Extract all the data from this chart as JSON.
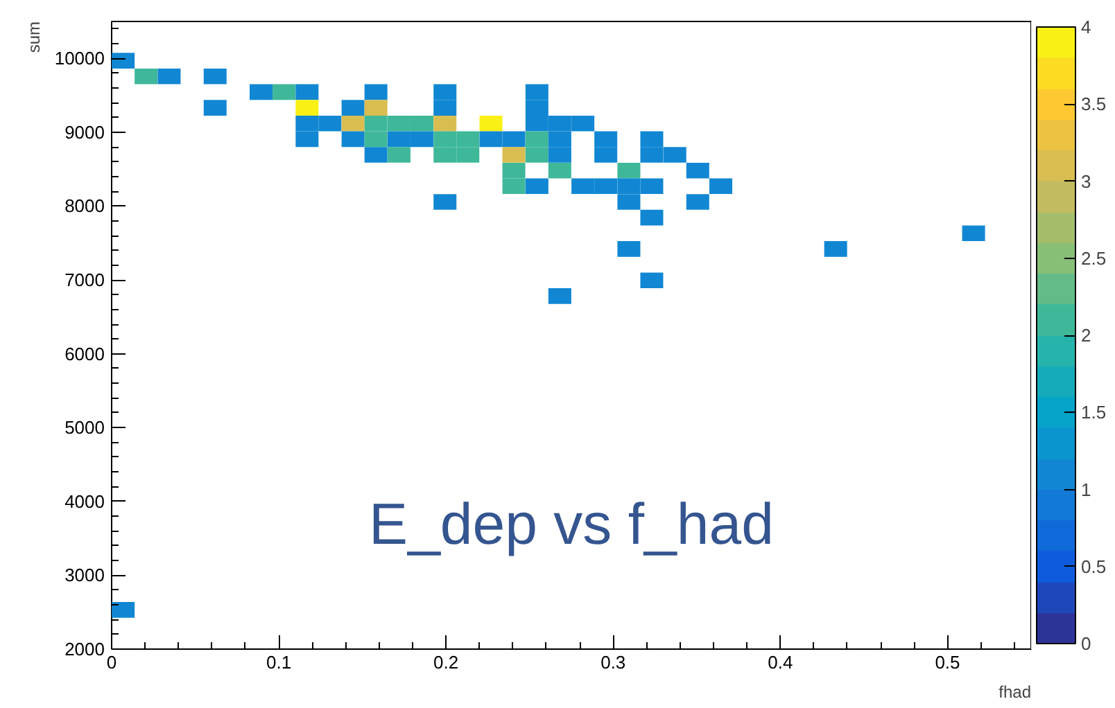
{
  "chart_data": {
    "type": "scatter",
    "marker": "square",
    "xlabel": "fhad",
    "ylabel": "sum",
    "annotations": [
      "E_dep vs f_had"
    ],
    "xlim": [
      0,
      0.55
    ],
    "ylim": [
      2000,
      10500
    ],
    "xticks": [
      0,
      0.1,
      0.2,
      0.3,
      0.4,
      0.5
    ],
    "yticks": [
      2000,
      3000,
      4000,
      5000,
      6000,
      7000,
      8000,
      9000,
      10000
    ],
    "clim": [
      0,
      4
    ],
    "cticks": [
      0,
      0.5,
      1,
      1.5,
      2,
      2.5,
      3,
      3.5,
      4
    ],
    "x": [
      0.0069,
      0.0206,
      0.0344,
      0.0619,
      0.0894,
      0.1031,
      0.1169,
      0.1581,
      0.1994,
      0.2544,
      0.0619,
      0.1169,
      0.1444,
      0.1581,
      0.1994,
      0.2544,
      0.1169,
      0.1306,
      0.1444,
      0.1581,
      0.1719,
      0.1856,
      0.1994,
      0.2269,
      0.2544,
      0.2681,
      0.2819,
      0.1169,
      0.1444,
      0.1581,
      0.1719,
      0.1856,
      0.1994,
      0.2131,
      0.2269,
      0.2406,
      0.2544,
      0.2681,
      0.2956,
      0.3231,
      0.1581,
      0.1719,
      0.1994,
      0.2131,
      0.2406,
      0.2544,
      0.2681,
      0.2956,
      0.3231,
      0.3369,
      0.2406,
      0.2681,
      0.3094,
      0.3506,
      0.2406,
      0.2544,
      0.2819,
      0.2956,
      0.3094,
      0.3231,
      0.3644,
      0.1994,
      0.3094,
      0.3506,
      0.3231,
      0.5156,
      0.3094,
      0.4331,
      0.3231,
      0.2681,
      0.0069
    ],
    "values": [
      9969,
      9756,
      9756,
      9756,
      9544,
      9544,
      9544,
      9544,
      9544,
      9544,
      9331,
      9331,
      9331,
      9331,
      9331,
      9331,
      9119,
      9119,
      9119,
      9119,
      9119,
      9119,
      9119,
      9119,
      9119,
      9119,
      9119,
      8906,
      8906,
      8906,
      8906,
      8906,
      8906,
      8906,
      8906,
      8906,
      8906,
      8906,
      8906,
      8906,
      8694,
      8694,
      8694,
      8694,
      8694,
      8694,
      8694,
      8694,
      8694,
      8694,
      8481,
      8481,
      8481,
      8481,
      8269,
      8269,
      8269,
      8269,
      8269,
      8269,
      8269,
      8056,
      8056,
      8056,
      7844,
      7631,
      7419,
      7419,
      6994,
      6781,
      2531
    ],
    "cvalues": [
      1,
      2,
      1,
      1,
      1,
      2,
      1,
      1,
      1,
      1,
      1,
      4,
      1,
      3,
      1,
      1,
      1,
      1,
      3,
      2,
      2,
      2,
      3,
      4,
      1,
      1,
      1,
      1,
      1,
      2,
      1,
      1,
      2,
      2,
      1,
      1,
      2,
      1,
      1,
      1,
      1,
      2,
      2,
      2,
      3,
      2,
      1,
      1,
      1,
      1,
      2,
      2,
      2,
      1,
      2,
      1,
      1,
      1,
      1,
      1,
      1,
      1,
      1,
      1,
      1,
      1,
      1,
      1,
      1,
      1,
      1
    ]
  }
}
